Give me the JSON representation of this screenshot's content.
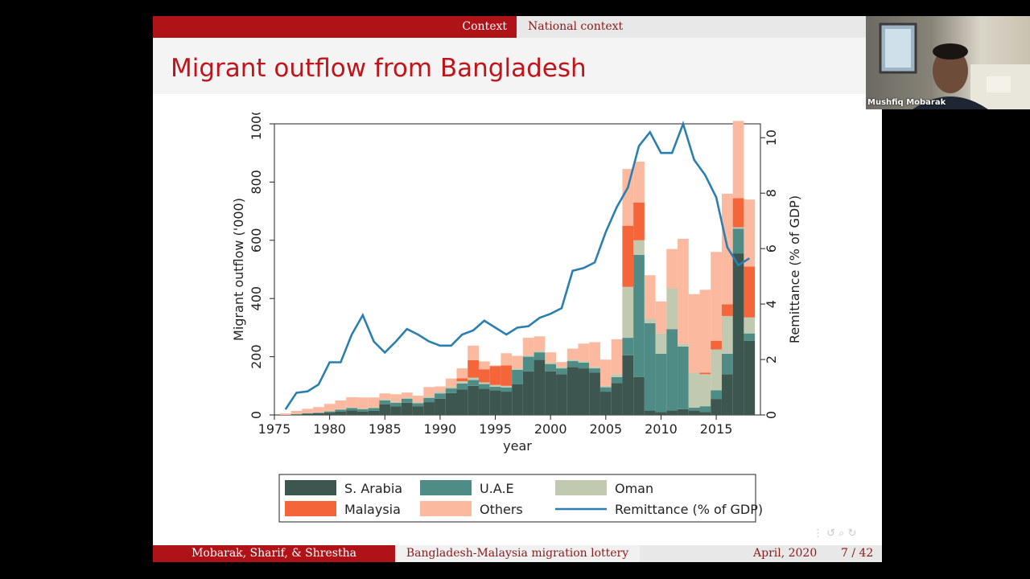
{
  "slide": {
    "nav_section": "Context",
    "nav_subsection": "National context",
    "title": "Migrant outflow from Bangladesh",
    "footer_authors": "Mobarak, Sharif, & Shrestha",
    "footer_title": "Bangladesh-Malaysia migration lottery",
    "footer_date": "April, 2020",
    "footer_page": "7 / 42",
    "nav_symbols": "⋮   ↺ ⌕ ↻"
  },
  "webcam": {
    "name": "Mushfiq Mobarak"
  },
  "colors": {
    "s_arabia": "#3d5750",
    "uae": "#4f8c86",
    "oman": "#c1c9b0",
    "malaysia": "#f5653a",
    "others": "#fbb9a0",
    "remittance": "#2a7fb0"
  },
  "chart_data": {
    "type": "bar",
    "stacked": true,
    "xlabel": "year",
    "ylabel": "Migrant outflow ('000)",
    "y2label": "Remittance (% of GDP)",
    "xlim": [
      1975,
      2019
    ],
    "ylim": [
      0,
      1000
    ],
    "y2lim": [
      0,
      10.5
    ],
    "xticks": [
      1975,
      1980,
      1985,
      1990,
      1995,
      2000,
      2005,
      2010,
      2015
    ],
    "yticks": [
      0,
      200,
      400,
      600,
      800,
      1000
    ],
    "y2ticks": [
      0,
      2,
      4,
      6,
      8,
      10
    ],
    "legend_position": "bottom",
    "categories": [
      1976,
      1977,
      1978,
      1979,
      1980,
      1981,
      1982,
      1983,
      1984,
      1985,
      1986,
      1987,
      1988,
      1989,
      1990,
      1991,
      1992,
      1993,
      1994,
      1995,
      1996,
      1997,
      1998,
      1999,
      2000,
      2001,
      2002,
      2003,
      2004,
      2005,
      2006,
      2007,
      2008,
      2009,
      2010,
      2011,
      2012,
      2013,
      2014,
      2015,
      2016,
      2017,
      2018
    ],
    "series": [
      {
        "name": "S. Arabia",
        "values": [
          0,
          2,
          4,
          6,
          8,
          12,
          16,
          12,
          14,
          36,
          30,
          42,
          30,
          44,
          56,
          75,
          88,
          100,
          90,
          85,
          80,
          105,
          150,
          190,
          150,
          140,
          165,
          160,
          145,
          80,
          110,
          205,
          130,
          15,
          10,
          15,
          20,
          15,
          10,
          55,
          140,
          555,
          255
        ]
      },
      {
        "name": "U.A.E",
        "values": [
          0,
          1,
          2,
          2,
          4,
          6,
          8,
          8,
          10,
          14,
          12,
          14,
          10,
          14,
          18,
          16,
          20,
          20,
          16,
          12,
          14,
          50,
          50,
          25,
          25,
          20,
          20,
          20,
          15,
          15,
          20,
          60,
          420,
          300,
          200,
          280,
          215,
          10,
          20,
          30,
          70,
          85,
          25
        ]
      },
      {
        "name": "Oman",
        "values": [
          0,
          1,
          1,
          1,
          2,
          2,
          2,
          2,
          2,
          4,
          4,
          4,
          4,
          4,
          6,
          6,
          8,
          8,
          6,
          6,
          6,
          5,
          5,
          5,
          5,
          5,
          5,
          5,
          5,
          5,
          10,
          175,
          50,
          15,
          70,
          140,
          10,
          120,
          110,
          140,
          130,
          5,
          55
        ]
      },
      {
        "name": "Malaysia",
        "values": [
          0,
          0,
          0,
          0,
          0,
          0,
          0,
          0,
          0,
          0,
          0,
          0,
          0,
          0,
          0,
          0,
          10,
          60,
          45,
          65,
          70,
          0,
          0,
          0,
          0,
          0,
          0,
          0,
          0,
          0,
          0,
          210,
          130,
          0,
          0,
          0,
          0,
          0,
          5,
          30,
          40,
          100,
          175
        ]
      },
      {
        "name": "Others",
        "values": [
          5,
          10,
          14,
          18,
          24,
          30,
          35,
          38,
          34,
          20,
          25,
          17,
          22,
          34,
          18,
          28,
          34,
          50,
          27,
          2,
          42,
          43,
          60,
          50,
          35,
          17,
          38,
          60,
          85,
          90,
          120,
          195,
          140,
          150,
          110,
          135,
          360,
          270,
          285,
          305,
          380,
          265,
          230
        ]
      },
      {
        "name": "Remittance (% of GDP)",
        "type": "line",
        "values": [
          0.2,
          0.8,
          0.85,
          1.1,
          1.9,
          1.9,
          2.9,
          3.6,
          2.65,
          2.25,
          2.65,
          3.1,
          2.9,
          2.65,
          2.5,
          2.5,
          2.9,
          3.05,
          3.4,
          3.15,
          2.9,
          3.15,
          3.2,
          3.5,
          3.65,
          3.85,
          5.2,
          5.3,
          5.5,
          6.6,
          7.5,
          8.2,
          9.7,
          10.2,
          9.45,
          9.45,
          10.5,
          9.2,
          8.65,
          7.85,
          6.05,
          5.4,
          5.65
        ]
      }
    ]
  }
}
